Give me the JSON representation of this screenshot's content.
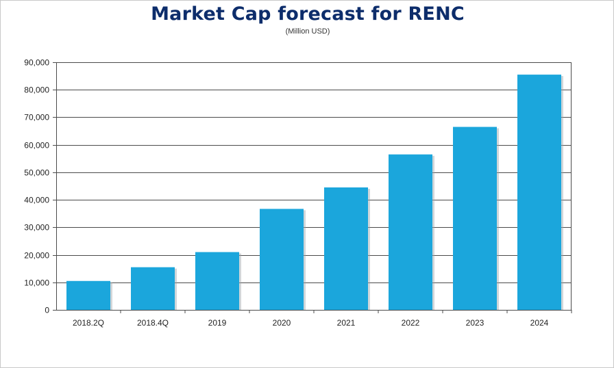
{
  "chart_data": {
    "type": "bar",
    "title": "Market Cap  forecast for RENC",
    "subtitle": "(Million USD)",
    "xlabel": "",
    "ylabel": "",
    "categories": [
      "2018.2Q",
      "2018.4Q",
      "2019",
      "2020",
      "2021",
      "2022",
      "2023",
      "2024"
    ],
    "values": [
      10500,
      15500,
      21000,
      36700,
      44500,
      56500,
      66500,
      85500
    ],
    "ylim": [
      0,
      90000
    ],
    "yticks": [
      0,
      10000,
      20000,
      30000,
      40000,
      50000,
      60000,
      70000,
      80000,
      90000
    ],
    "ytick_labels": [
      "0",
      "10,000",
      "20,000",
      "30,000",
      "40,000",
      "50,000",
      "60,000",
      "70,000",
      "80,000",
      "90,000"
    ],
    "grid": true,
    "legend": "none",
    "bar_color": "#1ba6dc"
  }
}
